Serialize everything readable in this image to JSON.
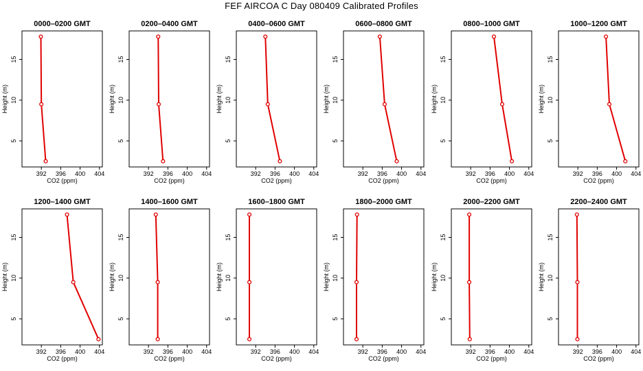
{
  "title": "FEF AIRCOA C  Day 080409  Calibrated Profiles",
  "colors": {
    "profile": "#e00000",
    "axis": "#000000",
    "background": "#ffffff"
  },
  "chart_data": [
    {
      "type": "line",
      "title": "0000–0200 GMT",
      "xlabel": "CO2 (ppm)",
      "ylabel": "Height (m)",
      "xlim": [
        388,
        404.6
      ],
      "ylim": [
        1.8,
        18.5
      ],
      "xticks": [
        392,
        396,
        400,
        404
      ],
      "yticks": [
        5,
        10,
        15
      ],
      "grid": false,
      "series": [
        {
          "x": [
            391.9,
            392.0,
            392.9
          ],
          "y": [
            17.8,
            9.5,
            2.5
          ]
        }
      ]
    },
    {
      "type": "line",
      "title": "0200–0400 GMT",
      "xlabel": "CO2 (ppm)",
      "ylabel": "Height (m)",
      "xlim": [
        388,
        404.6
      ],
      "ylim": [
        1.8,
        18.5
      ],
      "xticks": [
        392,
        396,
        400,
        404
      ],
      "yticks": [
        5,
        10,
        15
      ],
      "grid": false,
      "series": [
        {
          "x": [
            394.0,
            394.1,
            395.0
          ],
          "y": [
            17.8,
            9.5,
            2.5
          ]
        }
      ]
    },
    {
      "type": "line",
      "title": "0400–0600 GMT",
      "xlabel": "CO2 (ppm)",
      "ylabel": "Height (m)",
      "xlim": [
        388,
        404.6
      ],
      "ylim": [
        1.8,
        18.5
      ],
      "xticks": [
        392,
        396,
        400,
        404
      ],
      "yticks": [
        5,
        10,
        15
      ],
      "grid": false,
      "series": [
        {
          "x": [
            394.0,
            394.5,
            397.0
          ],
          "y": [
            17.8,
            9.5,
            2.5
          ]
        }
      ]
    },
    {
      "type": "line",
      "title": "0600–0800 GMT",
      "xlabel": "CO2 (ppm)",
      "ylabel": "Height (m)",
      "xlim": [
        388,
        404.6
      ],
      "ylim": [
        1.8,
        18.5
      ],
      "xticks": [
        392,
        396,
        400,
        404
      ],
      "yticks": [
        5,
        10,
        15
      ],
      "grid": false,
      "series": [
        {
          "x": [
            395.5,
            396.5,
            399.0
          ],
          "y": [
            17.8,
            9.5,
            2.5
          ]
        }
      ]
    },
    {
      "type": "line",
      "title": "0800–1000 GMT",
      "xlabel": "CO2 (ppm)",
      "ylabel": "Height (m)",
      "xlim": [
        388,
        404.6
      ],
      "ylim": [
        1.8,
        18.5
      ],
      "xticks": [
        392,
        396,
        400,
        404
      ],
      "yticks": [
        5,
        10,
        15
      ],
      "grid": false,
      "series": [
        {
          "x": [
            396.8,
            398.5,
            400.5
          ],
          "y": [
            17.8,
            9.5,
            2.5
          ]
        }
      ]
    },
    {
      "type": "line",
      "title": "1000–1200 GMT",
      "xlabel": "CO2 (ppm)",
      "ylabel": "Height (m)",
      "xlim": [
        388,
        404.6
      ],
      "ylim": [
        1.8,
        18.5
      ],
      "xticks": [
        392,
        396,
        400,
        404
      ],
      "yticks": [
        5,
        10,
        15
      ],
      "grid": false,
      "series": [
        {
          "x": [
            397.8,
            398.5,
            401.8
          ],
          "y": [
            17.8,
            9.5,
            2.5
          ]
        }
      ]
    },
    {
      "type": "line",
      "title": "1200–1400 GMT",
      "xlabel": "CO2 (ppm)",
      "ylabel": "Height (m)",
      "xlim": [
        388,
        404.6
      ],
      "ylim": [
        1.8,
        18.5
      ],
      "xticks": [
        392,
        396,
        400,
        404
      ],
      "yticks": [
        5,
        10,
        15
      ],
      "grid": false,
      "series": [
        {
          "x": [
            397.3,
            398.6,
            403.8
          ],
          "y": [
            17.8,
            9.5,
            2.5
          ]
        }
      ]
    },
    {
      "type": "line",
      "title": "1400–1600 GMT",
      "xlabel": "CO2 (ppm)",
      "ylabel": "Height (m)",
      "xlim": [
        388,
        404.6
      ],
      "ylim": [
        1.8,
        18.5
      ],
      "xticks": [
        392,
        396,
        400,
        404
      ],
      "yticks": [
        5,
        10,
        15
      ],
      "grid": false,
      "series": [
        {
          "x": [
            393.5,
            393.9,
            393.9
          ],
          "y": [
            17.8,
            9.5,
            2.5
          ]
        }
      ]
    },
    {
      "type": "line",
      "title": "1600–1800 GMT",
      "xlabel": "CO2 (ppm)",
      "ylabel": "Height (m)",
      "xlim": [
        388,
        404.6
      ],
      "ylim": [
        1.8,
        18.5
      ],
      "xticks": [
        392,
        396,
        400,
        404
      ],
      "yticks": [
        5,
        10,
        15
      ],
      "grid": false,
      "series": [
        {
          "x": [
            390.7,
            390.7,
            390.7
          ],
          "y": [
            17.8,
            9.5,
            2.5
          ]
        }
      ]
    },
    {
      "type": "line",
      "title": "1800–2000 GMT",
      "xlabel": "CO2 (ppm)",
      "ylabel": "Height (m)",
      "xlim": [
        388,
        404.6
      ],
      "ylim": [
        1.8,
        18.5
      ],
      "xticks": [
        392,
        396,
        400,
        404
      ],
      "yticks": [
        5,
        10,
        15
      ],
      "grid": false,
      "series": [
        {
          "x": [
            390.8,
            390.7,
            390.7
          ],
          "y": [
            17.8,
            9.5,
            2.5
          ]
        }
      ]
    },
    {
      "type": "line",
      "title": "2000–2200 GMT",
      "xlabel": "CO2 (ppm)",
      "ylabel": "Height (m)",
      "xlim": [
        388,
        404.6
      ],
      "ylim": [
        1.8,
        18.5
      ],
      "xticks": [
        392,
        396,
        400,
        404
      ],
      "yticks": [
        5,
        10,
        15
      ],
      "grid": false,
      "series": [
        {
          "x": [
            391.7,
            391.7,
            391.8
          ],
          "y": [
            17.8,
            9.5,
            2.5
          ]
        }
      ]
    },
    {
      "type": "line",
      "title": "2200–2400 GMT",
      "xlabel": "CO2 (ppm)",
      "ylabel": "Height (m)",
      "xlim": [
        388,
        404.6
      ],
      "ylim": [
        1.8,
        18.5
      ],
      "xticks": [
        392,
        396,
        400,
        404
      ],
      "yticks": [
        5,
        10,
        15
      ],
      "grid": false,
      "series": [
        {
          "x": [
            391.8,
            391.9,
            391.9
          ],
          "y": [
            17.8,
            9.5,
            2.5
          ]
        }
      ]
    }
  ]
}
